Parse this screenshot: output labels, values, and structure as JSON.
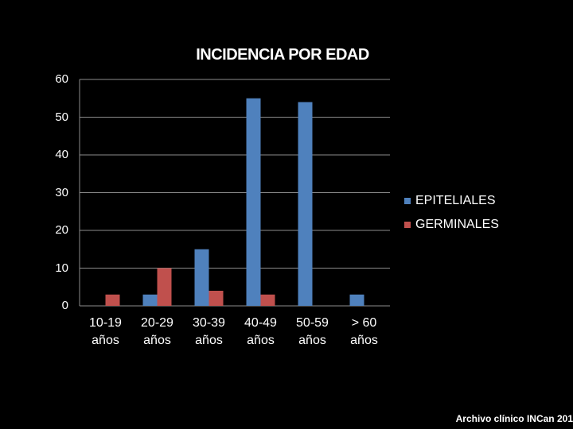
{
  "chart_data": {
    "type": "bar",
    "title": "INCIDENCIA POR EDAD",
    "categories": [
      [
        "10-19",
        "años"
      ],
      [
        "20-29",
        "años"
      ],
      [
        "30-39",
        "años"
      ],
      [
        "40-49",
        "años"
      ],
      [
        "50-59",
        "años"
      ],
      [
        "> 60",
        "años"
      ]
    ],
    "series": [
      {
        "name": "EPITELIALES",
        "color": "#4F81BD",
        "values": [
          0,
          3,
          15,
          55,
          54,
          3
        ]
      },
      {
        "name": "GERMINALES",
        "color": "#C0504D",
        "values": [
          3,
          10,
          4,
          3,
          0,
          0
        ]
      }
    ],
    "yticks": [
      0,
      10,
      20,
      30,
      40,
      50,
      60
    ],
    "ylim": [
      0,
      60
    ],
    "xlabel": "",
    "ylabel": "",
    "grid": true,
    "legend": "right"
  },
  "source_note": "Archivo clínico INCan 201"
}
